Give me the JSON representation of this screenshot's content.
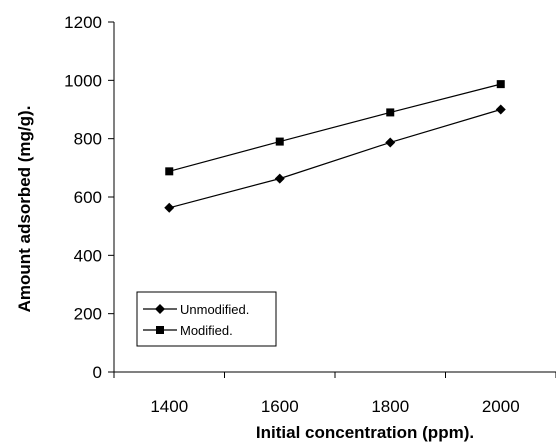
{
  "chart_data": {
    "type": "line",
    "title": "",
    "xlabel": "Initial concentration (ppm).",
    "ylabel": "Amount adsorbed (mg/g).",
    "x": [
      1400,
      1600,
      1800,
      2000
    ],
    "xticks": [
      "1400",
      "1600",
      "1800",
      "2000"
    ],
    "yticks": [
      "0",
      "200",
      "400",
      "600",
      "800",
      "1000",
      "1200"
    ],
    "xlim": [
      1300,
      2100
    ],
    "ylim": [
      0,
      1200
    ],
    "grid": false,
    "legend_position": "bottom-left",
    "series": [
      {
        "name": "Unmodified.",
        "marker": "diamond",
        "color": "#000000",
        "values": [
          563,
          663,
          787,
          900
        ]
      },
      {
        "name": "Modified.",
        "marker": "square",
        "color": "#000000",
        "values": [
          688,
          790,
          890,
          987
        ]
      }
    ]
  }
}
